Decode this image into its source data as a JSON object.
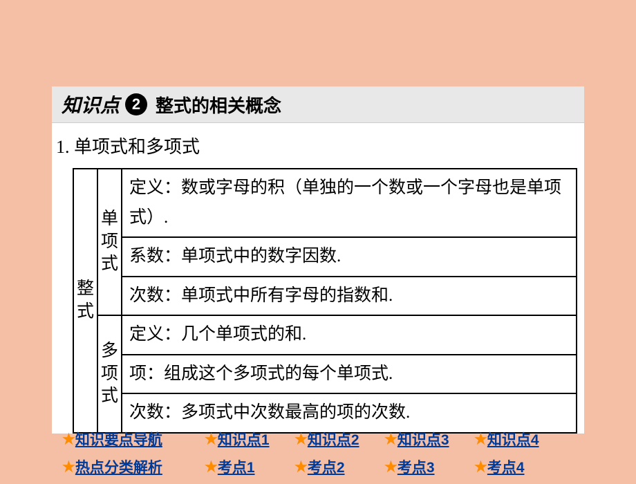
{
  "section": {
    "label": "知识点",
    "number": "2",
    "title": "整式的相关概念"
  },
  "subtitle": "1. 单项式和多项式",
  "table": {
    "outerHeader": "整式",
    "group1": {
      "header": "单项式",
      "rows": [
        "定义：数或字母的积（单独的一个数或一个字母也是单项式）.",
        "系数：单项式中的数字因数.",
        "次数：单项式中所有字母的指数和."
      ]
    },
    "group2": {
      "header": "多项式",
      "rows": [
        "定义：几个单项式的和.",
        "项：组成这个多项式的每个单项式.",
        "次数：多项式中次数最高的项的次数."
      ]
    }
  },
  "nav": {
    "star": "★",
    "row1": {
      "header": "知识要点导航",
      "items": [
        "知识点1",
        "知识点2",
        "知识点3",
        "知识点4"
      ]
    },
    "row2": {
      "header": "热点分类解析",
      "items": [
        "考点1",
        "考点2",
        "考点3",
        "考点4"
      ]
    }
  }
}
